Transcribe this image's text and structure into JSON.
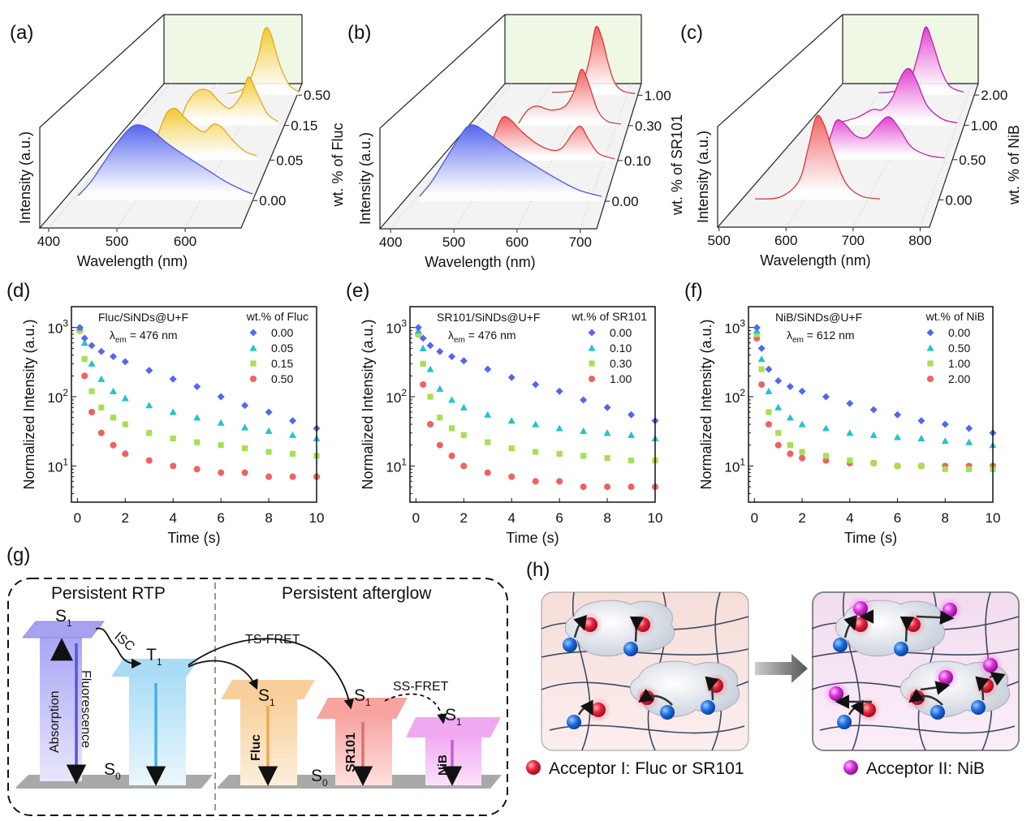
{
  "panel_labels": {
    "a": "(a)",
    "b": "(b)",
    "c": "(c)",
    "d": "(d)",
    "e": "(e)",
    "f": "(f)",
    "g": "(g)",
    "h": "(h)"
  },
  "colors": {
    "blue": "#5566ee",
    "teal": "#22c4cc",
    "green": "#a6e052",
    "red": "#f06262",
    "yellow": "#f2c830",
    "magenta": "#e040d0",
    "wall": "#eef8e4",
    "floor": "#f3f3f3"
  },
  "chart_data": [
    {
      "id": "a",
      "type": "area",
      "subtype": "3d-waterfall",
      "xlabel": "Wavelength (nm)",
      "ylabel": "Intensity (a.u.)",
      "zlabel": "wt. % of Fluc",
      "xticks": [
        "400",
        "500",
        "600"
      ],
      "xtick_values": [
        400,
        500,
        600
      ],
      "xlim": [
        387,
        682
      ],
      "zticks": [
        "0.00",
        "0.05",
        "0.15",
        "0.50"
      ],
      "series": [
        {
          "z": "0.00",
          "color": "blue",
          "x": [
            410,
            430,
            450,
            470,
            490,
            505,
            525,
            550,
            580,
            610,
            640,
            670,
            682
          ],
          "y": [
            0.05,
            0.2,
            0.4,
            0.6,
            0.76,
            0.8,
            0.74,
            0.6,
            0.46,
            0.33,
            0.2,
            0.1,
            0.07
          ]
        },
        {
          "z": "0.05",
          "color": "yellow",
          "x": [
            475,
            490,
            505,
            520,
            535,
            555,
            570,
            585,
            600,
            620,
            640,
            660
          ],
          "y": [
            0.02,
            0.3,
            0.55,
            0.6,
            0.5,
            0.38,
            0.33,
            0.42,
            0.38,
            0.22,
            0.1,
            0.05
          ]
        },
        {
          "z": "0.15",
          "color": "yellow",
          "x": [
            485,
            500,
            520,
            540,
            560,
            580,
            600,
            615,
            630,
            650,
            670
          ],
          "y": [
            0.04,
            0.3,
            0.45,
            0.44,
            0.3,
            0.22,
            0.38,
            0.62,
            0.42,
            0.15,
            0.05
          ]
        },
        {
          "z": "0.50",
          "color": "yellow",
          "x": [
            540,
            560,
            580,
            600,
            615,
            628,
            645,
            665,
            685
          ],
          "y": [
            0.02,
            0.05,
            0.15,
            0.5,
            0.92,
            0.85,
            0.45,
            0.15,
            0.05
          ]
        }
      ]
    },
    {
      "id": "b",
      "type": "area",
      "subtype": "3d-waterfall",
      "xlabel": "Wavelength (nm)",
      "ylabel": "Intensity (a.u.)",
      "zlabel": "wt. % of SR101",
      "xticks": [
        "400",
        "500",
        "600",
        "700"
      ],
      "xtick_values": [
        400,
        500,
        600,
        700
      ],
      "xlim": [
        383,
        726
      ],
      "zticks": [
        "0.00",
        "0.10",
        "0.30",
        "1.00"
      ],
      "series": [
        {
          "z": "0.00",
          "color": "blue",
          "x": [
            410,
            430,
            450,
            470,
            490,
            505,
            525,
            560,
            600,
            640,
            680,
            720
          ],
          "y": [
            0.05,
            0.2,
            0.4,
            0.6,
            0.78,
            0.8,
            0.72,
            0.56,
            0.4,
            0.25,
            0.12,
            0.05
          ]
        },
        {
          "z": "0.10",
          "color": "red",
          "x": [
            470,
            490,
            505,
            520,
            540,
            570,
            600,
            620,
            640,
            655,
            670,
            690,
            720
          ],
          "y": [
            0.02,
            0.3,
            0.5,
            0.48,
            0.35,
            0.2,
            0.12,
            0.15,
            0.32,
            0.4,
            0.25,
            0.08,
            0.02
          ]
        },
        {
          "z": "0.30",
          "color": "red",
          "x": [
            490,
            510,
            530,
            560,
            590,
            610,
            625,
            640,
            660,
            680,
            710
          ],
          "y": [
            0.03,
            0.2,
            0.25,
            0.2,
            0.25,
            0.45,
            0.72,
            0.55,
            0.2,
            0.06,
            0.02
          ]
        },
        {
          "z": "1.00",
          "color": "red",
          "x": [
            520,
            560,
            590,
            610,
            625,
            640,
            655,
            670,
            690,
            720
          ],
          "y": [
            0.04,
            0.05,
            0.12,
            0.5,
            0.95,
            0.8,
            0.45,
            0.18,
            0.06,
            0.02
          ]
        }
      ]
    },
    {
      "id": "c",
      "type": "area",
      "subtype": "3d-waterfall",
      "xlabel": "Wavelength (nm)",
      "ylabel": "Intensity (a.u.)",
      "zlabel": "wt. % of NiB",
      "xticks": [
        "500",
        "600",
        "700",
        "800"
      ],
      "xtick_values": [
        500,
        600,
        700,
        800
      ],
      "xlim": [
        498,
        814
      ],
      "zticks": [
        "0.00",
        "0.50",
        "1.00",
        "2.00"
      ],
      "series": [
        {
          "z": "0.00",
          "color": "red",
          "x": [
            520,
            560,
            590,
            605,
            618,
            630,
            645,
            665,
            690,
            720
          ],
          "y": [
            0.01,
            0.03,
            0.2,
            0.55,
            0.88,
            0.8,
            0.5,
            0.18,
            0.04,
            0.01
          ]
        },
        {
          "z": "0.50",
          "color": "magenta",
          "x": [
            560,
            590,
            605,
            620,
            640,
            660,
            680,
            700,
            720,
            740,
            770,
            800
          ],
          "y": [
            0.02,
            0.2,
            0.45,
            0.42,
            0.28,
            0.26,
            0.4,
            0.5,
            0.35,
            0.15,
            0.05,
            0.02
          ]
        },
        {
          "z": "1.00",
          "color": "magenta",
          "x": [
            560,
            600,
            630,
            650,
            670,
            690,
            705,
            720,
            740,
            770,
            800
          ],
          "y": [
            0.03,
            0.1,
            0.2,
            0.2,
            0.35,
            0.65,
            0.72,
            0.55,
            0.25,
            0.08,
            0.03
          ]
        },
        {
          "z": "2.00",
          "color": "magenta",
          "x": [
            600,
            640,
            670,
            690,
            705,
            720,
            740,
            760,
            790
          ],
          "y": [
            0.03,
            0.06,
            0.2,
            0.6,
            0.95,
            0.75,
            0.35,
            0.12,
            0.04
          ]
        }
      ]
    },
    {
      "id": "d",
      "type": "scatter",
      "yscale": "log",
      "xlabel": "Time (s)",
      "ylabel": "Normalized Intensity (a.u.)",
      "xlim": [
        -0.25,
        10
      ],
      "ylim": [
        3,
        2000
      ],
      "xticks": [
        "0",
        "2",
        "4",
        "6",
        "8",
        "10"
      ],
      "yticks": [
        {
          "base": "10",
          "exp": "1"
        },
        {
          "base": "10",
          "exp": "2"
        },
        {
          "base": "10",
          "exp": "3"
        }
      ],
      "annotation": {
        "sample": "Fluc/SiNDs@U+F",
        "lambda": "λ",
        "sub": "em",
        "rest": " = 476 nm"
      },
      "legend_title": "wt.% of Fluc",
      "legend_position": "top-right",
      "x": [
        0.1,
        0.3,
        0.6,
        1,
        1.5,
        2,
        3,
        4,
        5,
        6,
        7,
        8,
        9,
        10
      ],
      "series": [
        {
          "name": "0.00",
          "marker": "diamond",
          "color": "blue",
          "values": [
            1000,
            700,
            550,
            450,
            380,
            320,
            240,
            180,
            140,
            100,
            75,
            60,
            45,
            35
          ]
        },
        {
          "name": "0.05",
          "marker": "triangle",
          "color": "teal",
          "values": [
            1000,
            600,
            300,
            180,
            120,
            95,
            75,
            60,
            50,
            42,
            36,
            32,
            28,
            25
          ]
        },
        {
          "name": "0.15",
          "marker": "square",
          "color": "green",
          "values": [
            900,
            350,
            120,
            70,
            50,
            40,
            30,
            25,
            22,
            20,
            18,
            16,
            15,
            14
          ]
        },
        {
          "name": "0.50",
          "marker": "circle",
          "color": "red",
          "values": [
            900,
            200,
            60,
            30,
            20,
            15,
            12,
            10,
            9,
            8,
            8,
            7,
            7,
            7
          ]
        }
      ]
    },
    {
      "id": "e",
      "type": "scatter",
      "yscale": "log",
      "xlabel": "Time (s)",
      "ylabel": "Normalized Intensity (a.u.)",
      "xlim": [
        -0.25,
        10
      ],
      "ylim": [
        3,
        2000
      ],
      "xticks": [
        "0",
        "2",
        "4",
        "6",
        "8",
        "10"
      ],
      "yticks": [
        {
          "base": "10",
          "exp": "1"
        },
        {
          "base": "10",
          "exp": "2"
        },
        {
          "base": "10",
          "exp": "3"
        }
      ],
      "annotation": {
        "sample": "SR101/SiNDs@U+F",
        "lambda": "λ",
        "sub": "em",
        "rest": " = 476 nm"
      },
      "legend_title": "wt.% of SR101",
      "legend_position": "top-right",
      "x": [
        0.1,
        0.3,
        0.6,
        1,
        1.5,
        2,
        3,
        4,
        5,
        6,
        7,
        8,
        9,
        10
      ],
      "series": [
        {
          "name": "0.00",
          "marker": "diamond",
          "color": "blue",
          "values": [
            1000,
            700,
            550,
            450,
            380,
            330,
            250,
            190,
            150,
            120,
            90,
            70,
            55,
            45
          ]
        },
        {
          "name": "0.10",
          "marker": "triangle",
          "color": "teal",
          "values": [
            900,
            500,
            250,
            130,
            90,
            70,
            55,
            45,
            40,
            35,
            32,
            30,
            28,
            25
          ]
        },
        {
          "name": "0.30",
          "marker": "square",
          "color": "green",
          "values": [
            800,
            300,
            100,
            50,
            35,
            28,
            22,
            18,
            16,
            15,
            14,
            13,
            12,
            12
          ]
        },
        {
          "name": "1.00",
          "marker": "circle",
          "color": "red",
          "values": [
            800,
            150,
            40,
            20,
            14,
            10,
            8,
            7,
            6,
            6,
            5,
            5,
            5,
            5
          ]
        }
      ]
    },
    {
      "id": "f",
      "type": "scatter",
      "yscale": "log",
      "xlabel": "Time (s)",
      "ylabel": "Normalized Intensity (a.u.)",
      "xlim": [
        -0.25,
        10
      ],
      "ylim": [
        3,
        2000
      ],
      "xticks": [
        "0",
        "2",
        "4",
        "6",
        "8",
        "10"
      ],
      "yticks": [
        {
          "base": "10",
          "exp": "1"
        },
        {
          "base": "10",
          "exp": "2"
        },
        {
          "base": "10",
          "exp": "3"
        }
      ],
      "annotation": {
        "sample": "NiB/SiNDs@U+F",
        "lambda": "λ",
        "sub": "em",
        "rest": " = 612 nm"
      },
      "legend_title": "wt.% of NiB",
      "legend_position": "top-right",
      "x": [
        0.1,
        0.3,
        0.6,
        1,
        1.5,
        2,
        3,
        4,
        5,
        6,
        7,
        8,
        9,
        10
      ],
      "series": [
        {
          "name": "0.00",
          "marker": "diamond",
          "color": "blue",
          "values": [
            1000,
            500,
            250,
            170,
            140,
            120,
            100,
            80,
            65,
            55,
            45,
            40,
            35,
            30
          ]
        },
        {
          "name": "0.50",
          "marker": "triangle",
          "color": "teal",
          "values": [
            900,
            350,
            120,
            70,
            50,
            40,
            35,
            30,
            28,
            26,
            25,
            23,
            22,
            20
          ]
        },
        {
          "name": "1.00",
          "marker": "square",
          "color": "green",
          "values": [
            800,
            250,
            60,
            30,
            20,
            16,
            14,
            12,
            11,
            10,
            10,
            9,
            9,
            9
          ]
        },
        {
          "name": "2.00",
          "marker": "circle",
          "color": "red",
          "values": [
            700,
            150,
            40,
            20,
            15,
            13,
            12,
            11,
            11,
            10,
            10,
            10,
            10,
            10
          ]
        }
      ]
    }
  ],
  "diagram_g": {
    "left_title": "Persistent RTP",
    "right_title": "Persistent afterglow",
    "S": "S",
    "T": "T",
    "one": "1",
    "zero": "0",
    "isc": "ISC",
    "absorption": "Absorption",
    "fluorescence": "Fluorescence",
    "ts_fret": "TS-FRET",
    "ss_fret": "SS-FRET",
    "fluc": "Fluc",
    "sr101": "SR101",
    "nib": "NiB"
  },
  "diagram_h": {
    "acceptor1": "Acceptor I:  Fluc or SR101",
    "acceptor2": "Acceptor II: NiB"
  }
}
